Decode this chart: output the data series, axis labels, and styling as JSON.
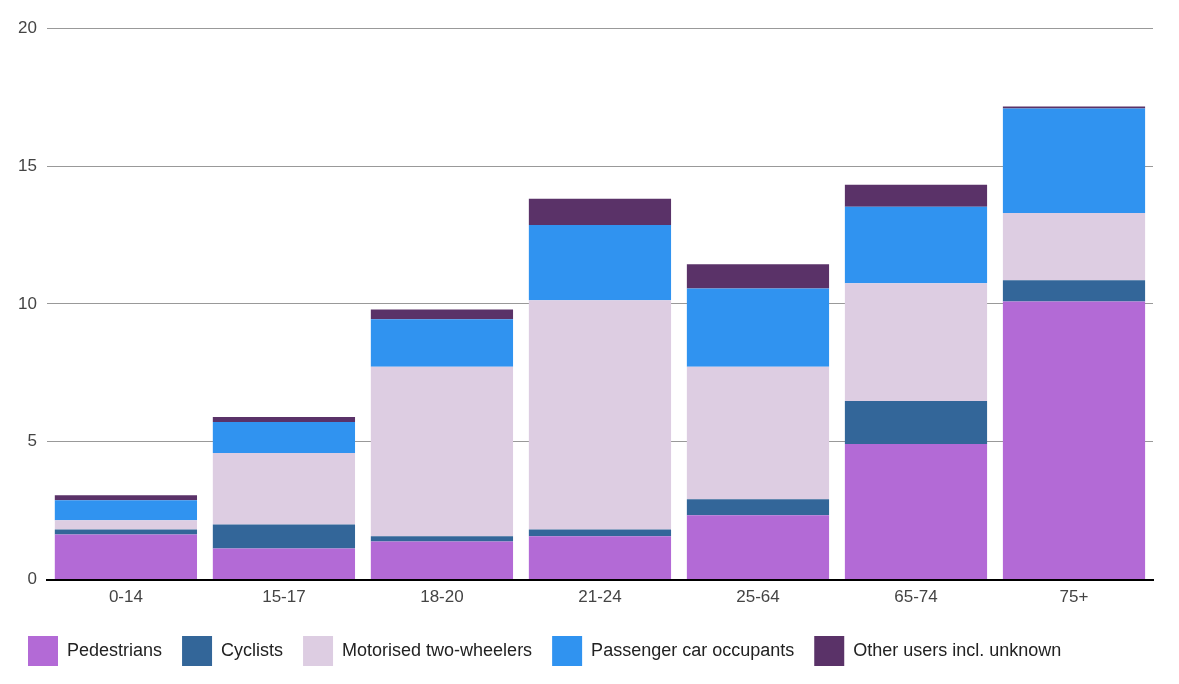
{
  "chart_data": {
    "type": "bar",
    "stacked": true,
    "categories": [
      "0-14",
      "15-17",
      "18-20",
      "21-24",
      "25-64",
      "65-74",
      "75+"
    ],
    "series": [
      {
        "name": "Pedestrians",
        "color": "#b36ad6",
        "values": [
          1.64,
          1.13,
          1.38,
          1.57,
          2.33,
          4.92,
          10.09
        ]
      },
      {
        "name": "Cyclists",
        "color": "#336699",
        "values": [
          0.18,
          0.87,
          0.19,
          0.25,
          0.58,
          1.56,
          0.77
        ]
      },
      {
        "name": "Motorised two-wheelers",
        "color": "#ddcde2",
        "values": [
          0.33,
          2.59,
          6.15,
          8.31,
          4.81,
          4.27,
          2.44
        ]
      },
      {
        "name": "Passenger car occupants",
        "color": "#3093f0",
        "values": [
          0.73,
          1.13,
          1.72,
          2.73,
          2.84,
          2.77,
          3.79
        ]
      },
      {
        "name": "Other users incl. unknown",
        "color": "#5a3268",
        "values": [
          0.18,
          0.18,
          0.36,
          0.95,
          0.88,
          0.8,
          0.07
        ]
      }
    ],
    "ylim": [
      0,
      20
    ],
    "yticks": [
      0,
      5,
      10,
      15,
      20
    ],
    "grid": "y",
    "legend": "bottom"
  }
}
